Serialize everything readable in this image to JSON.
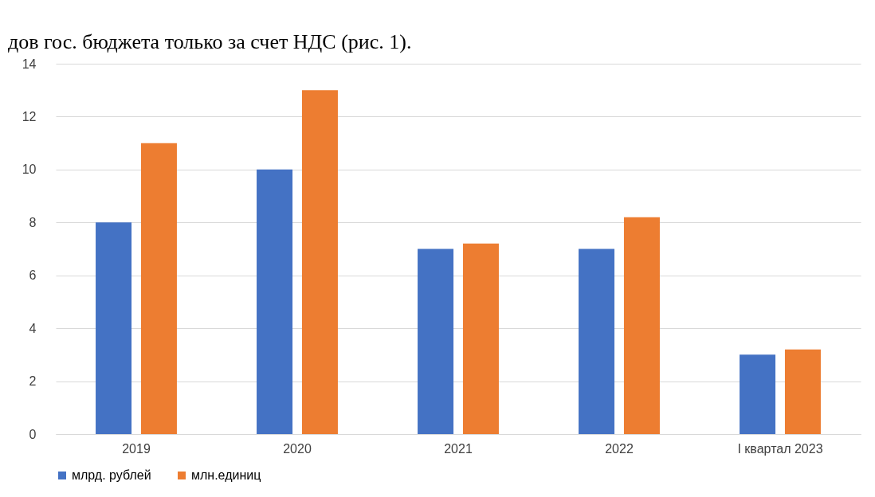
{
  "chart_data": {
    "type": "bar",
    "annotations": [
      "дов гос. бюджета только за счет НДС (рис. 1)."
    ],
    "categories": [
      "2019",
      "2020",
      "2021",
      "2022",
      "I квартал 2023"
    ],
    "series": [
      {
        "name": "млрд. рублей",
        "color": "#4472c4",
        "values": [
          8,
          10,
          7,
          7,
          3
        ]
      },
      {
        "name": "млн.единиц",
        "color": "#ed7d31",
        "values": [
          11,
          13,
          7.2,
          8.2,
          3.2
        ]
      }
    ],
    "ylim": [
      0,
      14
    ],
    "yticks": [
      0,
      2,
      4,
      6,
      8,
      10,
      12,
      14
    ],
    "grid": "y",
    "legend": "bottom"
  }
}
